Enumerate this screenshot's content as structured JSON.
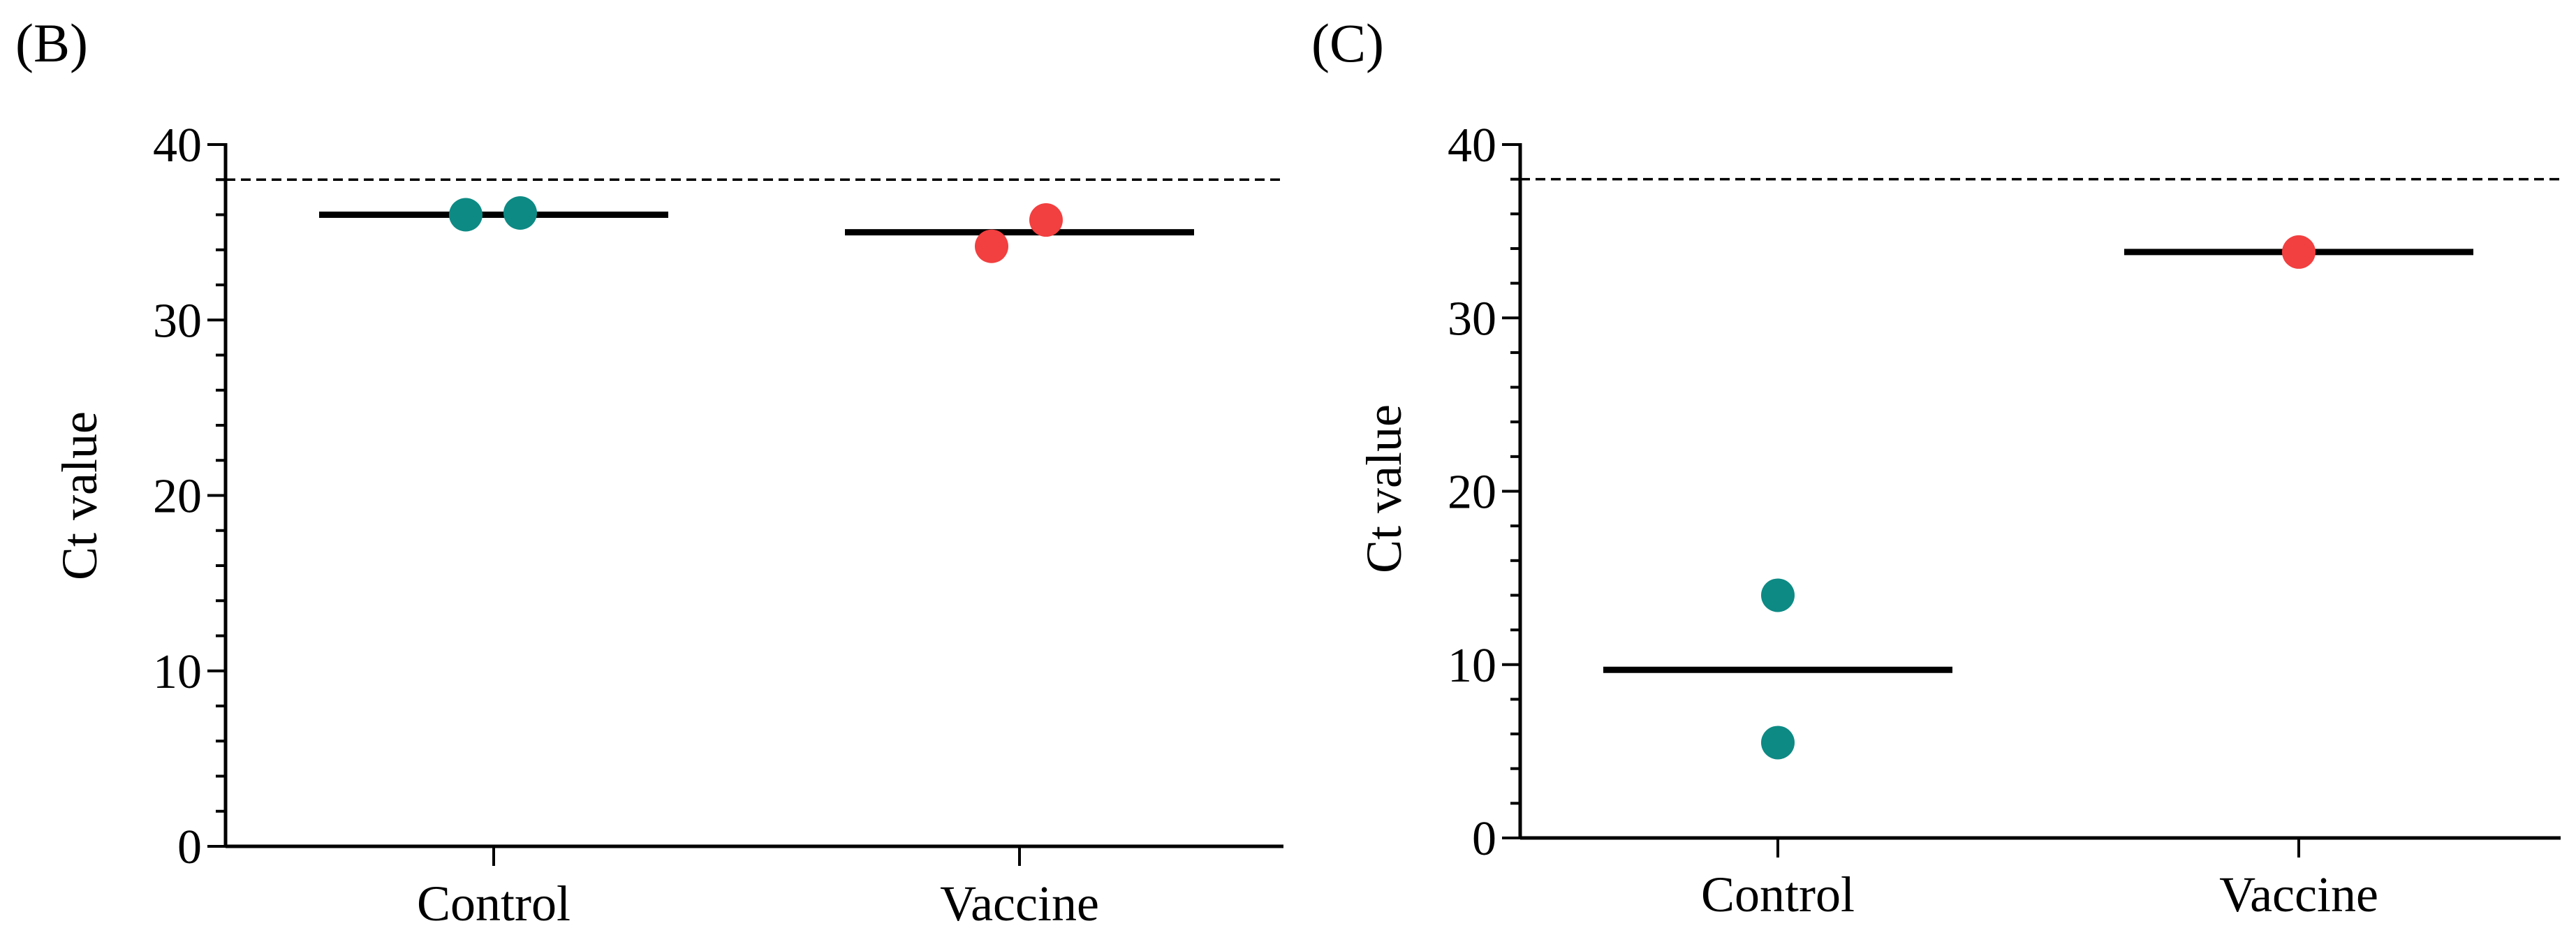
{
  "chart_data": [
    {
      "panel_label": "(B)",
      "type": "scatter",
      "ylabel": "Ct value",
      "xlabel": "",
      "ylim": [
        0,
        40
      ],
      "yticks": [
        0,
        10,
        20,
        30,
        40
      ],
      "categories": [
        "Control",
        "Vaccine"
      ],
      "points": [
        {
          "category": "Control",
          "values": [
            36.0,
            36.1
          ]
        },
        {
          "category": "Vaccine",
          "values": [
            34.2,
            35.7
          ]
        }
      ],
      "means": [
        36.0,
        35.0
      ],
      "threshold": 38.0,
      "colors": {
        "Control": "#0d8a84",
        "Vaccine": "#f23f3f"
      }
    },
    {
      "panel_label": "(C)",
      "type": "scatter",
      "ylabel": "Ct value",
      "xlabel": "",
      "ylim": [
        0,
        40
      ],
      "yticks": [
        0,
        10,
        20,
        30,
        40
      ],
      "categories": [
        "Control",
        "Vaccine"
      ],
      "points": [
        {
          "category": "Control",
          "values": [
            14.0,
            5.5
          ]
        },
        {
          "category": "Vaccine",
          "values": [
            33.8
          ]
        }
      ],
      "means": [
        9.7,
        33.8
      ],
      "threshold": 38.0,
      "colors": {
        "Control": "#0d8a84",
        "Vaccine": "#f23f3f"
      }
    }
  ]
}
